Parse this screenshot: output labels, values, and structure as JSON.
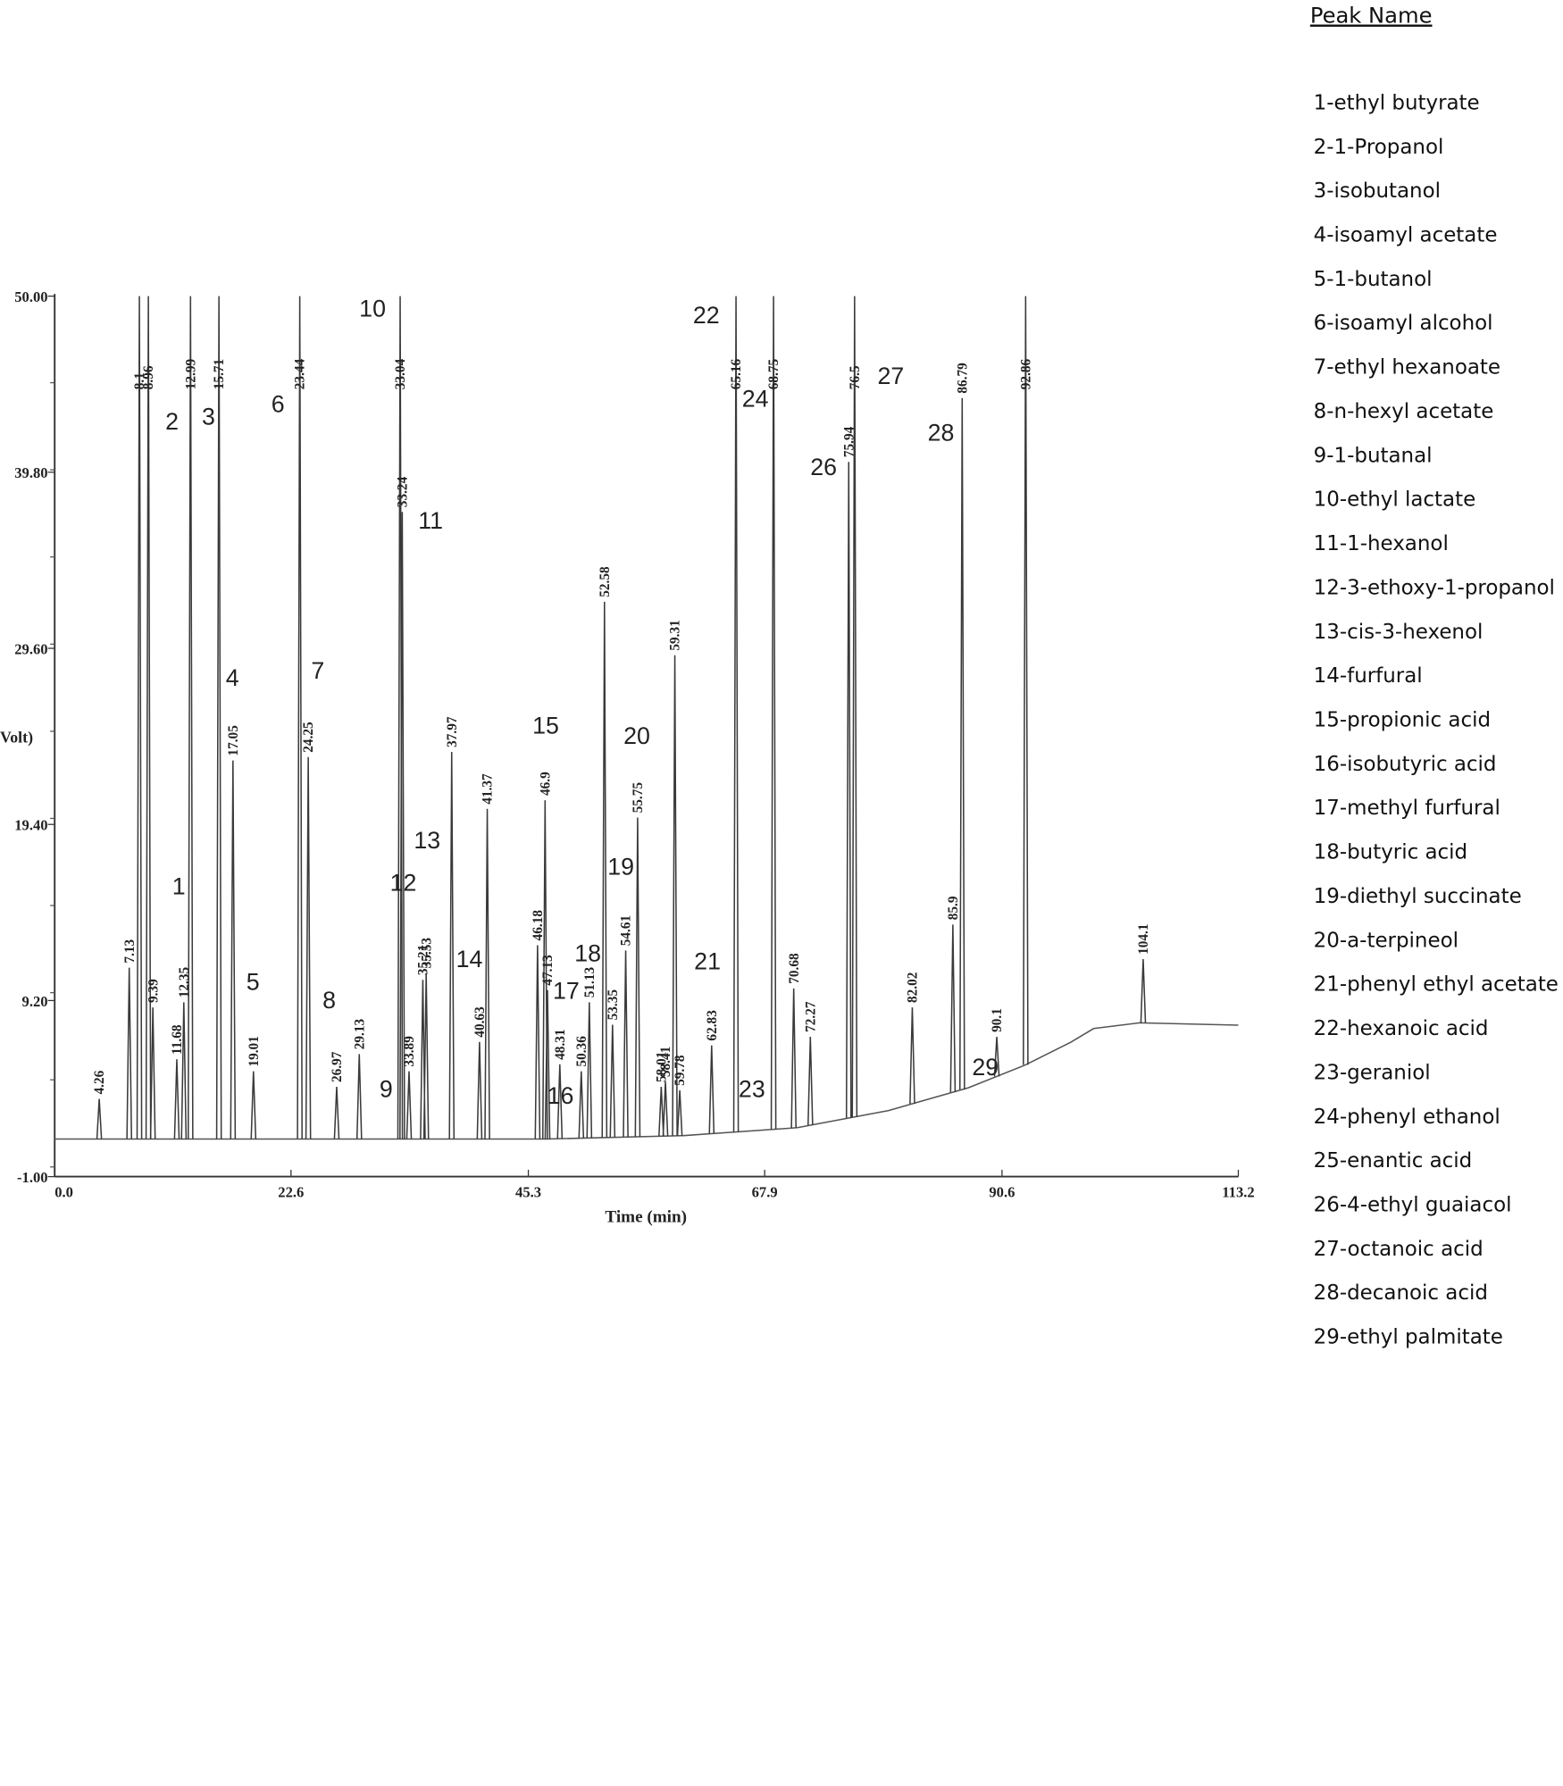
{
  "chart_data": {
    "type": "chromatogram",
    "y_label": "Volt)",
    "x_label": "Time (min)",
    "xlim": [
      0,
      113.2
    ],
    "ylim": [
      -1,
      50
    ],
    "xticks": [
      {
        "value": 0,
        "label": "0.0"
      },
      22.6,
      45.3,
      67.9,
      90.6,
      113.2
    ],
    "yticks": [
      {
        "value": -1,
        "label": "-1.00"
      },
      {
        "value": 9.2,
        "label": "9.20"
      },
      {
        "value": 19.4,
        "label": "19.40"
      },
      {
        "value": 29.6,
        "label": "29.60"
      },
      {
        "value": 39.8,
        "label": "39.80"
      },
      {
        "value": 50,
        "label": "50.00"
      }
    ],
    "color": "#3a3a3a",
    "x": [
      4.26,
      7.13,
      8.1,
      8.96,
      9.39,
      11.68,
      12.35,
      12.99,
      15.71,
      17.05,
      19.01,
      23.44,
      24.25,
      26.97,
      29.13,
      33.04,
      33.24,
      33.89,
      35.21,
      35.53,
      37.97,
      40.63,
      41.37,
      46.18,
      46.9,
      47.13,
      48.31,
      50.36,
      51.13,
      52.58,
      53.35,
      54.61,
      55.75,
      58.01,
      58.41,
      59.31,
      59.78,
      62.83,
      65.16,
      68.75,
      70.68,
      72.27,
      75.94,
      76.5,
      82.02,
      85.9,
      86.79,
      90.1,
      92.86,
      104.1
    ],
    "values": [
      3.5,
      11.1,
      50,
      50,
      8.8,
      5.8,
      9.1,
      50,
      50,
      23.1,
      5.1,
      50,
      23.3,
      4.2,
      6.1,
      50,
      37.5,
      5.1,
      10.4,
      10.8,
      23.6,
      6.8,
      20.3,
      12.4,
      20.8,
      9.8,
      5.5,
      5.1,
      9.1,
      32.3,
      7.8,
      12.1,
      19.8,
      4.2,
      4.5,
      29.2,
      4.0,
      6.6,
      50,
      50,
      9.9,
      7.1,
      40.4,
      50,
      8.8,
      13.6,
      44.1,
      7.1,
      50,
      11.6
    ],
    "annotations": [
      "1",
      "2",
      "3",
      "4",
      "5",
      "6",
      "7",
      "8",
      "9",
      "10",
      "11",
      "12",
      "13",
      "14",
      "15",
      "16",
      "17",
      "18",
      "19",
      "20",
      "21",
      "22",
      "23",
      "24",
      "26",
      "27",
      "28",
      "29"
    ],
    "legend_title": "Peak Name",
    "legend_items": [
      "1-ethyl butyrate",
      "2-1-Propanol",
      "3-isobutanol",
      "4-isoamyl acetate",
      "5-1-butanol",
      "6-isoamyl alcohol",
      "7-ethyl hexanoate",
      "8-n-hexyl acetate",
      "9-1-butanal",
      "10-ethyl lactate",
      "11-1-hexanol",
      "12-3-ethoxy-1-propanol",
      "13-cis-3-hexenol",
      "14-furfural",
      "15-propionic acid",
      "16-isobutyric acid",
      "17-methyl furfural",
      "18-butyric acid",
      "19-diethyl succinate",
      "20-a-terpineol",
      "21-phenyl ethyl acetate",
      "22-hexanoic acid",
      "23-geraniol",
      "24-phenyl ethanol",
      "25-enantic acid",
      "26-4-ethyl guaiacol",
      "27-octanoic acid",
      "28-decanoic acid",
      "29-ethyl palmitate"
    ]
  }
}
